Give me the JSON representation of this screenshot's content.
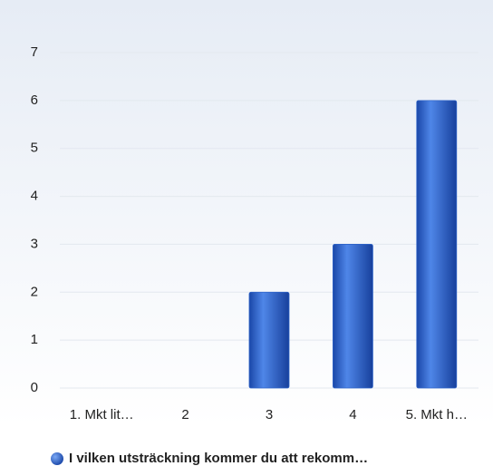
{
  "chart_data": {
    "type": "bar",
    "categories": [
      "1. Mkt lit…",
      "2",
      "3",
      "4",
      "5. Mkt h…"
    ],
    "series": [
      {
        "name": "I vilken utsträckning kommer du att rekomm…",
        "color": "#2f64c8",
        "values": [
          0,
          0,
          2,
          3,
          6
        ]
      }
    ],
    "ylim": [
      0,
      7
    ],
    "yticks": [
      0,
      1,
      2,
      3,
      4,
      5,
      6,
      7
    ],
    "grid": true,
    "legend": "bottom"
  }
}
